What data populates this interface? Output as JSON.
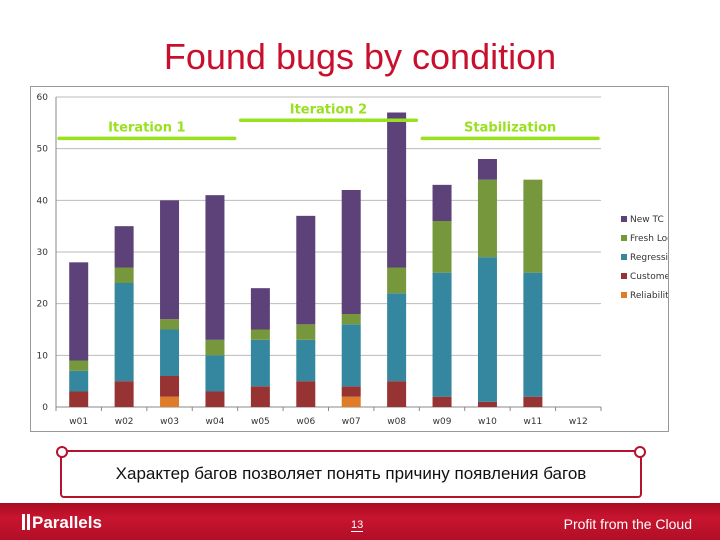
{
  "slide_title": "Found bugs by condition",
  "banner_text": "Характер багов позволяет понять причину появления багов",
  "footer": {
    "logo": "Parallels",
    "page_number": "13",
    "slogan": "Profit from the Cloud"
  },
  "chart_data": {
    "type": "bar",
    "stacked": true,
    "categories": [
      "w01",
      "w02",
      "w03",
      "w04",
      "w05",
      "w06",
      "w07",
      "w08",
      "w09",
      "w10",
      "w11",
      "w12"
    ],
    "series": [
      {
        "name": "Reliability",
        "color": "#e07b2a",
        "values": [
          0,
          0,
          2,
          0,
          0,
          0,
          2,
          0,
          0,
          0,
          0,
          0
        ]
      },
      {
        "name": "Customer",
        "color": "#983333",
        "values": [
          3,
          5,
          4,
          3,
          4,
          5,
          2,
          5,
          2,
          1,
          2,
          0
        ]
      },
      {
        "name": "Regression",
        "color": "#35879f",
        "values": [
          4,
          19,
          9,
          7,
          9,
          8,
          12,
          17,
          24,
          28,
          24,
          0
        ]
      },
      {
        "name": "Fresh Look",
        "color": "#77973d",
        "values": [
          2,
          3,
          2,
          3,
          2,
          3,
          2,
          5,
          10,
          15,
          18,
          0
        ]
      },
      {
        "name": "New TC",
        "color": "#5c4279",
        "values": [
          19,
          8,
          23,
          28,
          8,
          21,
          24,
          30,
          7,
          4,
          0,
          0
        ]
      }
    ],
    "ylim": [
      0,
      60
    ],
    "yticks": [
      0,
      10,
      20,
      30,
      40,
      50,
      60
    ],
    "grid": true,
    "legend": "right",
    "annotations": [
      {
        "label": "Iteration 1",
        "from": "w01",
        "to": "w04",
        "level": 52
      },
      {
        "label": "Iteration 2",
        "from": "w05",
        "to": "w08",
        "level": 55.5
      },
      {
        "label": "Stabilization",
        "from": "w09",
        "to": "w12",
        "level": 52
      }
    ],
    "annotation_color": "#99e01e"
  }
}
